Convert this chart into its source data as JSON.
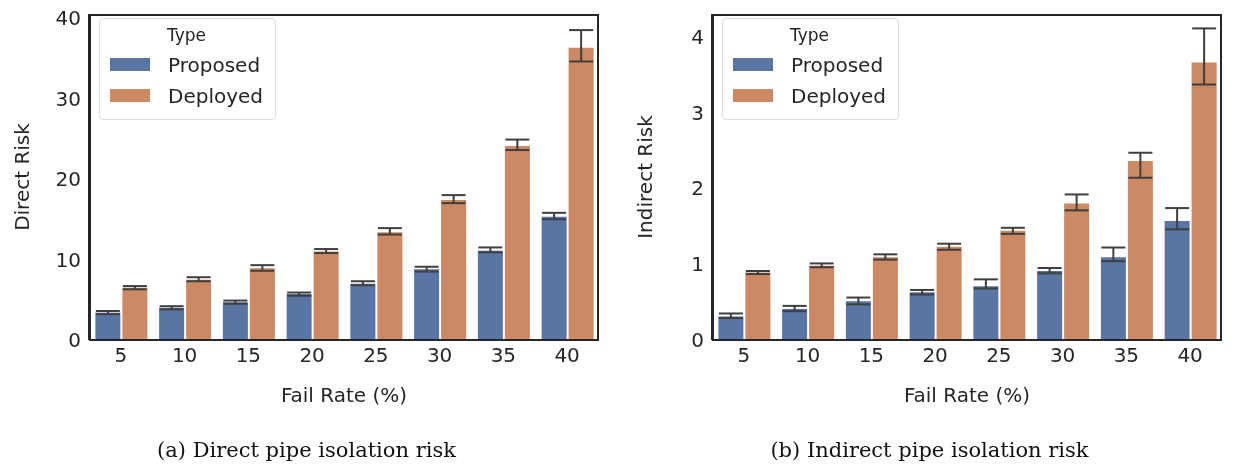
{
  "chart_data": [
    {
      "type": "bar",
      "categories": [
        "5",
        "10",
        "15",
        "20",
        "25",
        "30",
        "35",
        "40"
      ],
      "xlabel": "Fail Rate (%)",
      "ylabel": "Direct Risk",
      "legend_title": "Type",
      "legend": "top left",
      "ylim": [
        0,
        40.5
      ],
      "yticks": [
        0,
        10,
        20,
        30,
        40
      ],
      "annotations": [
        "(a) Direct pipe isolation risk"
      ],
      "series": [
        {
          "name": "Proposed",
          "color": "#5875a4",
          "values": [
            3.4,
            4.0,
            4.7,
            5.7,
            7.0,
            8.8,
            11.1,
            15.3
          ],
          "errors": [
            [
              3.2,
              3.6
            ],
            [
              3.8,
              4.2
            ],
            [
              4.5,
              4.9
            ],
            [
              5.5,
              5.9
            ],
            [
              6.8,
              7.3
            ],
            [
              8.5,
              9.1
            ],
            [
              10.9,
              11.5
            ],
            [
              15.0,
              15.8
            ]
          ]
        },
        {
          "name": "Deployed",
          "color": "#cc8963",
          "values": [
            6.5,
            7.5,
            8.9,
            11.0,
            13.4,
            17.4,
            24.1,
            36.3
          ],
          "errors": [
            [
              6.3,
              6.7
            ],
            [
              7.3,
              7.8
            ],
            [
              8.6,
              9.3
            ],
            [
              10.8,
              11.3
            ],
            [
              13.1,
              13.9
            ],
            [
              17.0,
              18.0
            ],
            [
              23.6,
              24.9
            ],
            [
              34.6,
              38.5
            ]
          ]
        }
      ]
    },
    {
      "type": "bar",
      "categories": [
        "5",
        "10",
        "15",
        "20",
        "25",
        "30",
        "35",
        "40"
      ],
      "xlabel": "Fail Rate (%)",
      "ylabel": "Indirect Risk",
      "legend_title": "Type",
      "legend": "top left",
      "ylim": [
        0,
        4.3
      ],
      "yticks": [
        0,
        1,
        2,
        3,
        4
      ],
      "annotations": [
        "(b) Indirect pipe isolation risk"
      ],
      "series": [
        {
          "name": "Proposed",
          "color": "#5875a4",
          "values": [
            0.31,
            0.41,
            0.51,
            0.63,
            0.71,
            0.91,
            1.09,
            1.57
          ],
          "errors": [
            [
              0.29,
              0.35
            ],
            [
              0.38,
              0.45
            ],
            [
              0.47,
              0.56
            ],
            [
              0.6,
              0.66
            ],
            [
              0.68,
              0.8
            ],
            [
              0.88,
              0.95
            ],
            [
              1.04,
              1.22
            ],
            [
              1.46,
              1.74
            ]
          ]
        },
        {
          "name": "Deployed",
          "color": "#cc8963",
          "values": [
            0.89,
            0.98,
            1.09,
            1.23,
            1.44,
            1.8,
            2.36,
            3.66
          ],
          "errors": [
            [
              0.87,
              0.91
            ],
            [
              0.96,
              1.01
            ],
            [
              1.06,
              1.13
            ],
            [
              1.19,
              1.27
            ],
            [
              1.4,
              1.48
            ],
            [
              1.71,
              1.92
            ],
            [
              2.14,
              2.47
            ],
            [
              3.37,
              4.11
            ]
          ]
        }
      ]
    }
  ]
}
